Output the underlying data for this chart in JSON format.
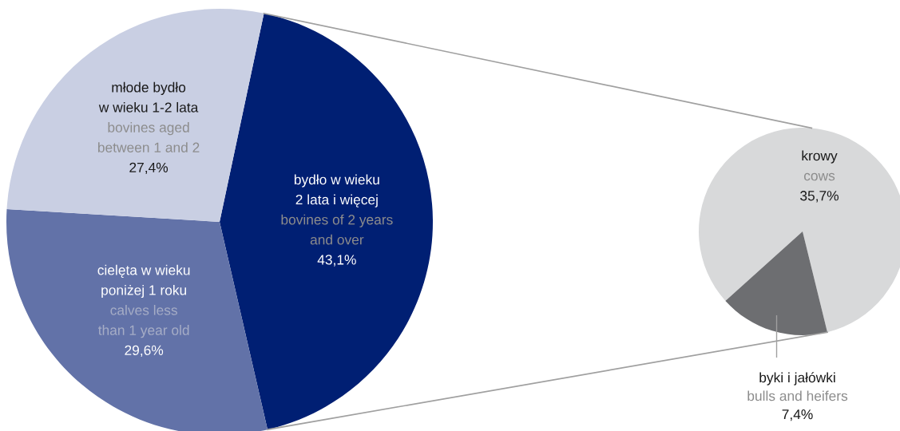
{
  "chart_data": [
    {
      "type": "pie",
      "categories": [
        "bydło w wieku\n2 lata i więcej\n\nbovines of 2 years\nand over",
        "cielęta w wieku\nponiżej 1 roku\n\ncalves less\nthan 1 year old",
        "młode bydło\nw wieku 1-2 lata\n\nbovines aged\nbetween 1 and 2"
      ],
      "values": [
        43.1,
        29.6,
        27.4
      ],
      "colors": [
        "#001f73",
        "#6272a8",
        "#c9cfe3"
      ],
      "value_labels": [
        "43,1%",
        "29,6%",
        "27,4%"
      ]
    },
    {
      "type": "pie",
      "categories": [
        "krowy\n\ncows",
        "byki i jałówki\n\nbulls and heifers"
      ],
      "values": [
        35.7,
        7.4
      ],
      "colors": [
        "#d8d9da",
        "#6d6e71"
      ],
      "value_labels": [
        "35,7%",
        "7,4%"
      ]
    }
  ]
}
